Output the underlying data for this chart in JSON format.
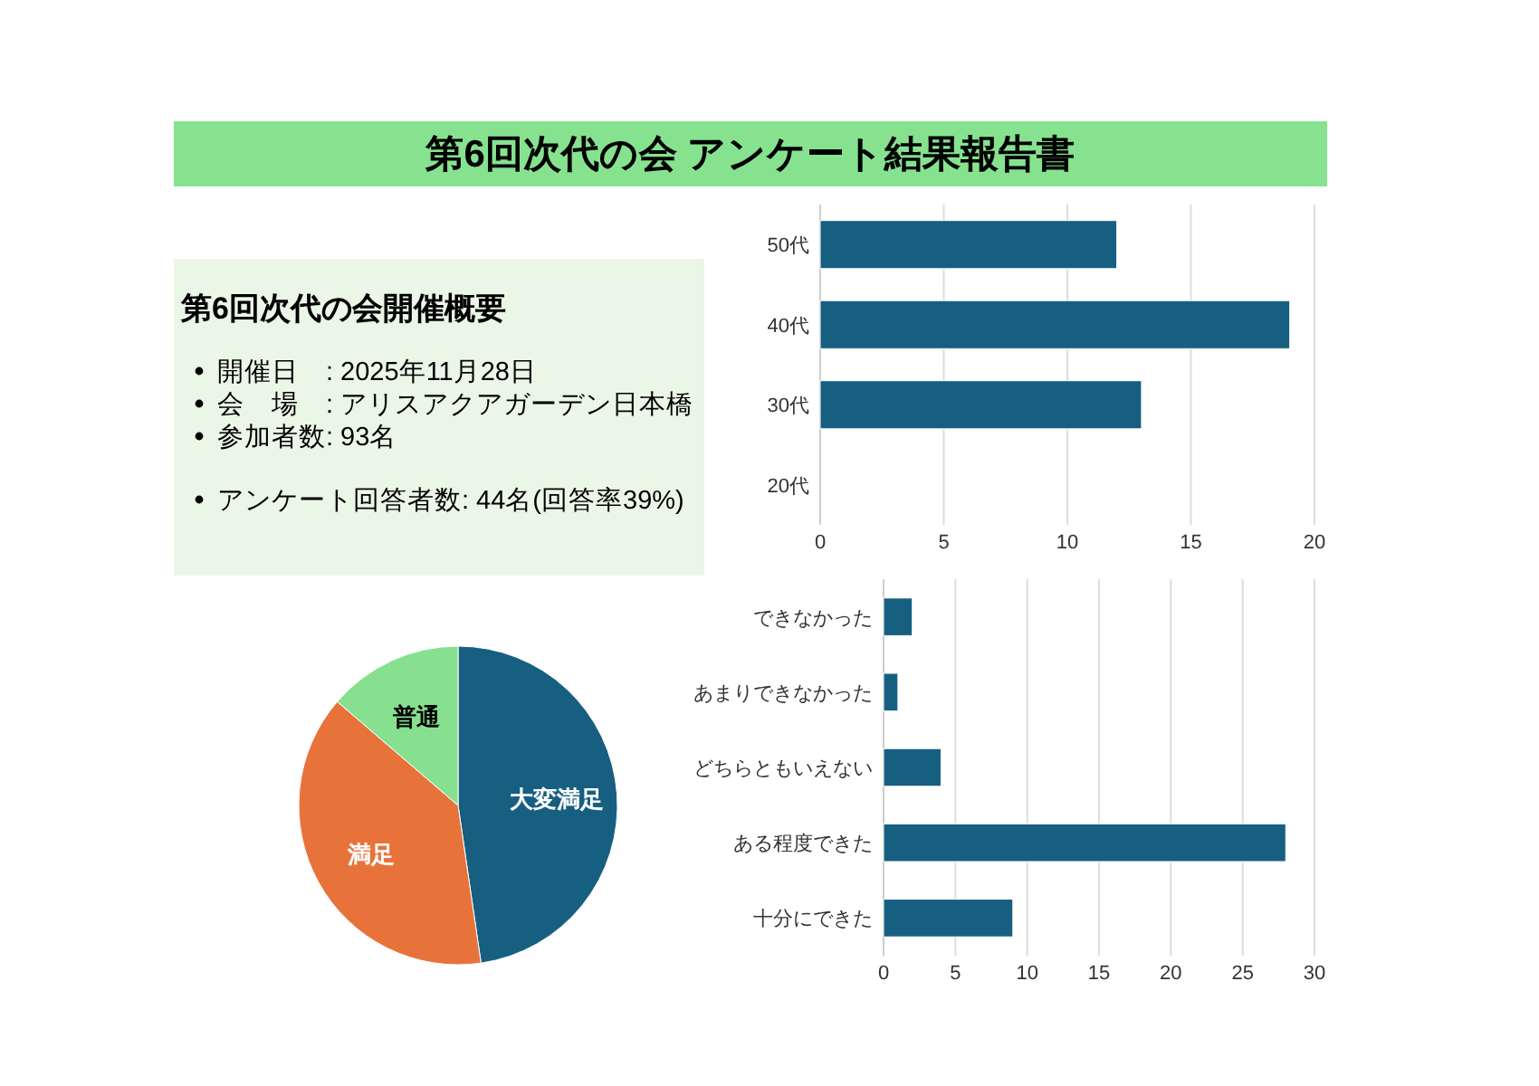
{
  "chart_data": [
    {
      "type": "other",
      "title": "第6回次代の会 アンケート結果報告書",
      "subtitle": "第6回次代の会開催概要",
      "annotations": [
        "開催日　: 2025年11月28日",
        "会　場　: アリスアクアガーデン日本橋",
        "参加者数: 93名",
        "アンケート回答者数: 44名(回答率39%)"
      ]
    },
    {
      "type": "bar",
      "orientation": "horizontal",
      "categories": [
        "50代",
        "40代",
        "30代",
        "20代"
      ],
      "values": [
        12,
        19,
        13,
        0
      ],
      "color": "#175f80",
      "xlim": [
        0,
        20
      ],
      "xticks": [
        0,
        5,
        10,
        15,
        20
      ],
      "grid": "x"
    },
    {
      "type": "pie",
      "categories": [
        "大変満足",
        "満足",
        "普通"
      ],
      "values": [
        47.7,
        38.6,
        13.7
      ],
      "colors": [
        "#175f80",
        "#e8733a",
        "#87e08f"
      ]
    },
    {
      "type": "bar",
      "orientation": "horizontal",
      "categories": [
        "できなかった",
        "あまりできなかった",
        "どちらともいえない",
        "ある程度できた",
        "十分にできた"
      ],
      "values": [
        2,
        1,
        4,
        28,
        9
      ],
      "color": "#175f80",
      "xlim": [
        0,
        30
      ],
      "xticks": [
        0,
        5,
        10,
        15,
        20,
        25,
        30
      ],
      "grid": "x"
    }
  ]
}
